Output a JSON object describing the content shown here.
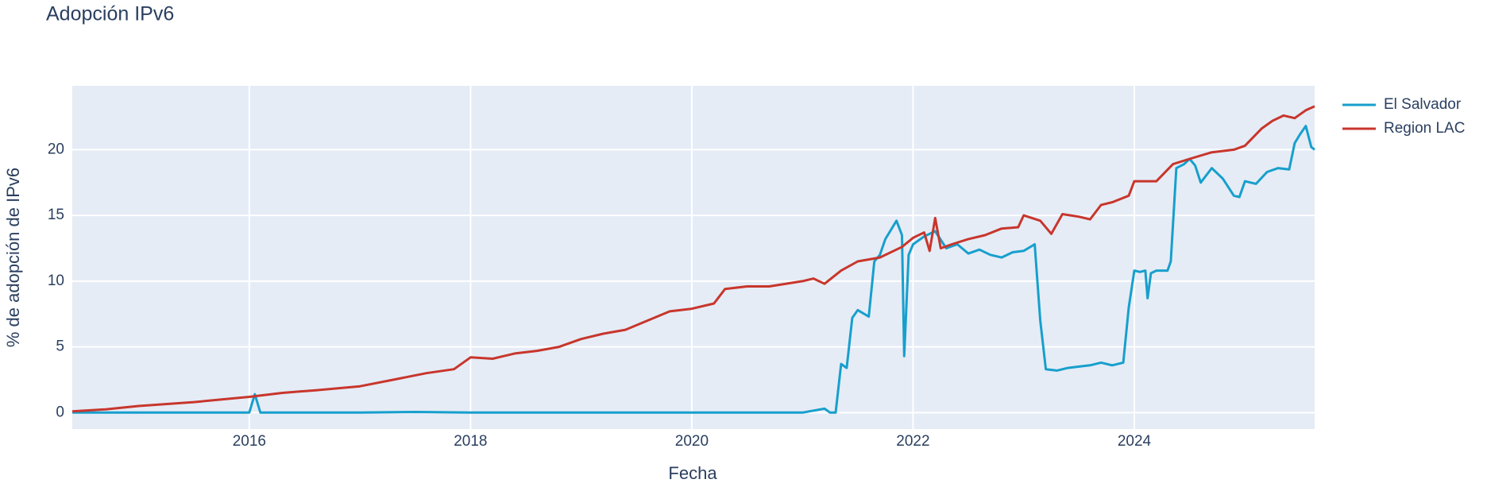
{
  "chart_data": {
    "type": "line",
    "title": "Adopción IPv6",
    "x_label": "Fecha",
    "y_label": "% de adopción de IPv6",
    "xlim": [
      2014.4,
      2025.63
    ],
    "xticks": [
      2016,
      2018,
      2020,
      2022,
      2024
    ],
    "ylim": [
      -1.25,
      24.86
    ],
    "yticks": [
      0,
      5,
      10,
      15,
      20
    ],
    "grid": true,
    "legend": "outside-right",
    "series": [
      {
        "name": "El Salvador",
        "color": "#179fcc",
        "x": [
          2014.4,
          2015.0,
          2015.5,
          2016.0,
          2016.05,
          2016.1,
          2016.5,
          2017.0,
          2017.5,
          2018.0,
          2018.5,
          2019.0,
          2019.5,
          2020.0,
          2020.5,
          2021.0,
          2021.2,
          2021.25,
          2021.3,
          2021.35,
          2021.4,
          2021.45,
          2021.5,
          2021.6,
          2021.65,
          2021.7,
          2021.75,
          2021.85,
          2021.9,
          2021.92,
          2021.96,
          2022.0,
          2022.1,
          2022.2,
          2022.3,
          2022.4,
          2022.5,
          2022.6,
          2022.7,
          2022.8,
          2022.9,
          2023.0,
          2023.1,
          2023.15,
          2023.2,
          2023.3,
          2023.4,
          2023.5,
          2023.6,
          2023.7,
          2023.8,
          2023.9,
          2023.95,
          2024.0,
          2024.05,
          2024.1,
          2024.12,
          2024.15,
          2024.2,
          2024.3,
          2024.33,
          2024.38,
          2024.45,
          2024.5,
          2024.55,
          2024.6,
          2024.7,
          2024.8,
          2024.9,
          2024.95,
          2025.0,
          2025.1,
          2025.2,
          2025.3,
          2025.4,
          2025.45,
          2025.5,
          2025.55,
          2025.6,
          2025.63
        ],
        "values": [
          0,
          0,
          0,
          0,
          1.4,
          0,
          0,
          0,
          0.05,
          0,
          0,
          0,
          0,
          0,
          0,
          0,
          0.3,
          0,
          0,
          3.7,
          3.4,
          7.2,
          7.8,
          7.3,
          11.5,
          12.0,
          13.2,
          14.6,
          13.5,
          4.3,
          12.0,
          12.8,
          13.4,
          13.8,
          12.5,
          12.8,
          12.1,
          12.4,
          12.0,
          11.8,
          12.2,
          12.3,
          12.8,
          7.0,
          3.3,
          3.2,
          3.4,
          3.5,
          3.6,
          3.8,
          3.6,
          3.8,
          8.0,
          10.8,
          10.7,
          10.8,
          8.7,
          10.6,
          10.8,
          10.8,
          11.5,
          18.6,
          18.9,
          19.3,
          18.8,
          17.5,
          18.6,
          17.8,
          16.5,
          16.4,
          17.6,
          17.4,
          18.3,
          18.6,
          18.5,
          20.5,
          21.2,
          21.8,
          20.2,
          20.0
        ]
      },
      {
        "name": "Region LAC",
        "color": "#c8362c",
        "x": [
          2014.4,
          2014.7,
          2015.0,
          2015.5,
          2016.0,
          2016.3,
          2016.6,
          2017.0,
          2017.3,
          2017.6,
          2017.85,
          2018.0,
          2018.2,
          2018.4,
          2018.6,
          2018.8,
          2019.0,
          2019.2,
          2019.4,
          2019.6,
          2019.8,
          2020.0,
          2020.2,
          2020.3,
          2020.5,
          2020.7,
          2021.0,
          2021.1,
          2021.2,
          2021.35,
          2021.5,
          2021.7,
          2021.9,
          2022.0,
          2022.1,
          2022.15,
          2022.2,
          2022.25,
          2022.35,
          2022.5,
          2022.65,
          2022.8,
          2022.95,
          2023.0,
          2023.15,
          2023.25,
          2023.35,
          2023.5,
          2023.6,
          2023.7,
          2023.8,
          2023.95,
          2024.0,
          2024.2,
          2024.35,
          2024.5,
          2024.7,
          2024.9,
          2025.0,
          2025.15,
          2025.25,
          2025.35,
          2025.45,
          2025.55,
          2025.63
        ],
        "values": [
          0.1,
          0.25,
          0.5,
          0.8,
          1.2,
          1.5,
          1.7,
          2.0,
          2.5,
          3.0,
          3.3,
          4.2,
          4.1,
          4.5,
          4.7,
          5.0,
          5.6,
          6.0,
          6.3,
          7.0,
          7.7,
          7.9,
          8.3,
          9.4,
          9.6,
          9.6,
          10.0,
          10.2,
          9.8,
          10.8,
          11.5,
          11.8,
          12.6,
          13.3,
          13.7,
          12.3,
          14.8,
          12.5,
          12.8,
          13.2,
          13.5,
          14.0,
          14.1,
          15.0,
          14.6,
          13.6,
          15.1,
          14.9,
          14.7,
          15.8,
          16.0,
          16.5,
          17.6,
          17.6,
          18.9,
          19.3,
          19.8,
          20.0,
          20.3,
          21.6,
          22.2,
          22.6,
          22.4,
          23.0,
          23.3
        ]
      }
    ]
  }
}
